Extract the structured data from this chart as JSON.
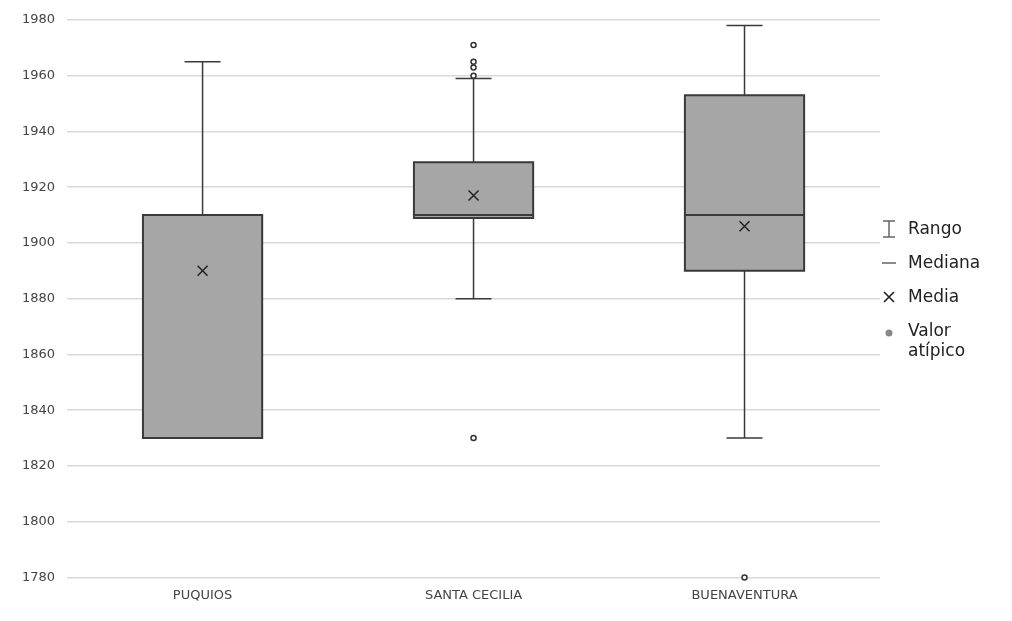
{
  "chart_data": {
    "type": "box",
    "categories": [
      "PUQUIOS",
      "SANTA CECILIA",
      "BUENAVENTURA"
    ],
    "series": [
      {
        "color": "#a6a6a6",
        "boxes": [
          {
            "low": 1830,
            "q1": 1830,
            "median": 1830,
            "q3": 1910,
            "high": 1965,
            "mean": 1890
          },
          {
            "low": 1880,
            "q1": 1909,
            "median": 1910,
            "q3": 1929,
            "high": 1959,
            "mean": 1917,
            "outliers": [
              1830,
              1960,
              1963,
              1965,
              1971
            ]
          },
          {
            "low": 1830,
            "q1": 1890,
            "median": 1910,
            "q3": 1953,
            "high": 1978,
            "mean": 1906,
            "outliers": [
              1780
            ]
          }
        ]
      }
    ],
    "ylim": [
      1780,
      1980
    ],
    "yticks": [
      1780,
      1800,
      1820,
      1840,
      1860,
      1880,
      1900,
      1920,
      1940,
      1960,
      1980
    ],
    "grid": "y",
    "annotations": [
      "Rango",
      "Mediana",
      "Media",
      "Valor atípico"
    ]
  }
}
